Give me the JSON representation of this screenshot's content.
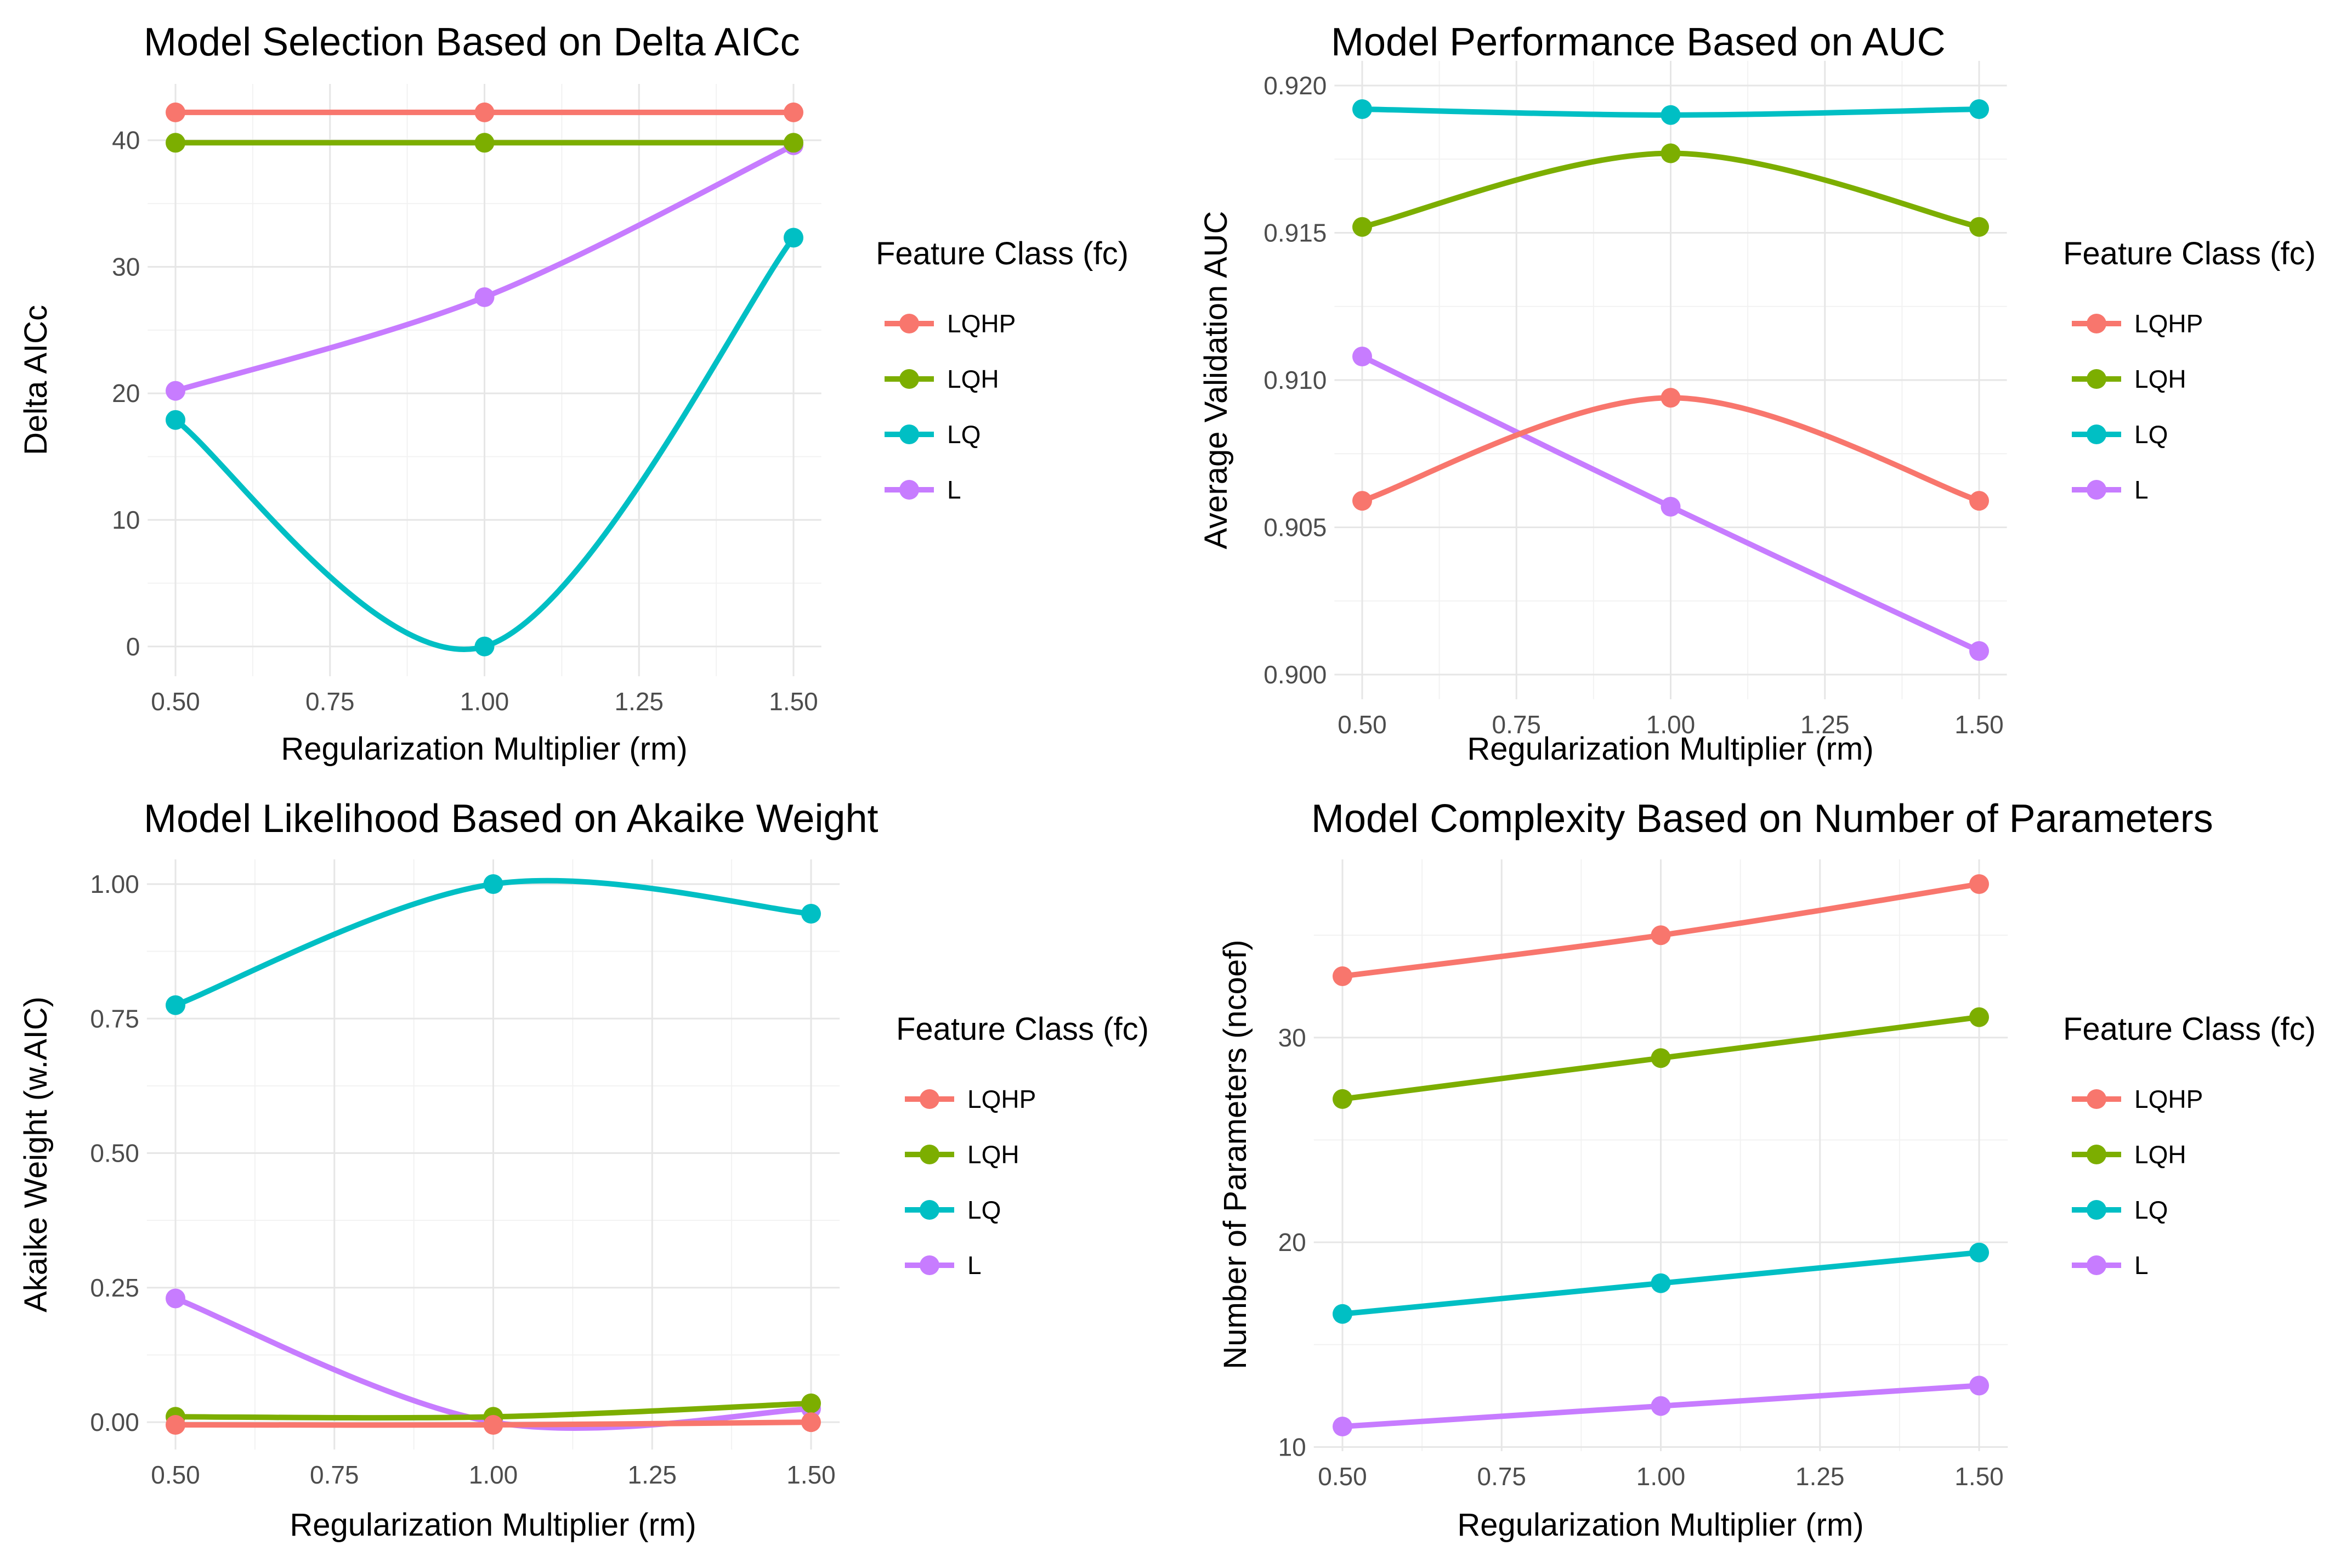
{
  "colors": {
    "LQHP": "#F8766D",
    "LQH": "#7CAE00",
    "LQ": "#00BFC4",
    "L": "#C77CFF"
  },
  "chart_data": [
    {
      "type": "line",
      "title": "Model Selection Based on Delta AICc",
      "xlabel": "Regularization Multiplier (rm)",
      "ylabel": "Delta AICc",
      "x": [
        0.5,
        1.0,
        1.5
      ],
      "xticks": [
        0.5,
        0.75,
        1.0,
        1.25,
        1.5
      ],
      "xtick_labels": [
        "0.50",
        "0.75",
        "1.00",
        "1.25",
        "1.50"
      ],
      "xlim": [
        0.5,
        1.5
      ],
      "yticks": [
        0,
        10,
        20,
        30,
        40
      ],
      "ytick_labels": [
        "0",
        "10",
        "20",
        "30",
        "40"
      ],
      "ylim": [
        -0.4,
        42.5
      ],
      "legend_title": "Feature Class (fc)",
      "series": [
        {
          "name": "LQHP",
          "values": [
            42.2,
            42.2,
            42.2
          ]
        },
        {
          "name": "LQH",
          "values": [
            39.8,
            39.8,
            39.8
          ]
        },
        {
          "name": "LQ",
          "values": [
            17.9,
            0.0,
            32.3
          ]
        },
        {
          "name": "L",
          "values": [
            20.2,
            27.6,
            39.6
          ]
        }
      ]
    },
    {
      "type": "line",
      "title": "Model Performance Based on AUC",
      "xlabel": "Regularization Multiplier (rm)",
      "ylabel": "Average Validation AUC",
      "x": [
        0.5,
        1.0,
        1.5
      ],
      "xticks": [
        0.5,
        0.75,
        1.0,
        1.25,
        1.5
      ],
      "xtick_labels": [
        "0.50",
        "0.75",
        "1.00",
        "1.25",
        "1.50"
      ],
      "xlim": [
        0.5,
        1.5
      ],
      "yticks": [
        0.9,
        0.905,
        0.91,
        0.915,
        0.92
      ],
      "ytick_labels": [
        "0.900",
        "0.905",
        "0.910",
        "0.915",
        "0.920"
      ],
      "ylim": [
        0.9,
        0.92
      ],
      "legend_title": "Feature Class (fc)",
      "series": [
        {
          "name": "LQHP",
          "values": [
            0.9059,
            0.9094,
            0.9059
          ]
        },
        {
          "name": "LQH",
          "values": [
            0.9152,
            0.9177,
            0.9152
          ]
        },
        {
          "name": "LQ",
          "values": [
            0.9192,
            0.919,
            0.9192
          ]
        },
        {
          "name": "L",
          "values": [
            0.9108,
            0.9057,
            0.9008
          ]
        }
      ]
    },
    {
      "type": "line",
      "title": "Model Likelihood Based on Akaike Weight",
      "xlabel": "Regularization Multiplier (rm)",
      "ylabel": "Akaike Weight (w.AIC)",
      "x": [
        0.5,
        1.0,
        1.5
      ],
      "xticks": [
        0.5,
        0.75,
        1.0,
        1.25,
        1.5
      ],
      "xtick_labels": [
        "0.50",
        "0.75",
        "1.00",
        "1.25",
        "1.50"
      ],
      "xlim": [
        0.5,
        1.5
      ],
      "yticks": [
        0,
        0.25,
        0.5,
        0.75,
        1.0
      ],
      "ytick_labels": [
        "0.00",
        "0.25",
        "0.50",
        "0.75",
        "1.00"
      ],
      "ylim": [
        -0.005,
        1.0
      ],
      "legend_title": "Feature Class (fc)",
      "series": [
        {
          "name": "LQHP",
          "values": [
            -0.005,
            -0.005,
            0.0
          ]
        },
        {
          "name": "LQH",
          "values": [
            0.01,
            0.01,
            0.035
          ]
        },
        {
          "name": "LQ",
          "values": [
            0.775,
            1.0,
            0.945
          ]
        },
        {
          "name": "L",
          "values": [
            0.23,
            0.0,
            0.025
          ]
        }
      ]
    },
    {
      "type": "line",
      "title": "Model Complexity Based on Number of Parameters",
      "xlabel": "Regularization Multiplier (rm)",
      "ylabel": "Number of Parameters (ncoef)",
      "x": [
        0.5,
        1.0,
        1.5
      ],
      "xticks": [
        0.5,
        0.75,
        1.0,
        1.25,
        1.5
      ],
      "xtick_labels": [
        "0.50",
        "0.75",
        "1.00",
        "1.25",
        "1.50"
      ],
      "xlim": [
        0.5,
        1.5
      ],
      "yticks": [
        10,
        20,
        30
      ],
      "ytick_labels": [
        "10",
        "20",
        "30"
      ],
      "ylim": [
        11,
        37.5
      ],
      "legend_title": "Feature Class (fc)",
      "series": [
        {
          "name": "LQHP",
          "values": [
            33,
            35,
            37.5
          ]
        },
        {
          "name": "LQH",
          "values": [
            27,
            29,
            31
          ]
        },
        {
          "name": "LQ",
          "values": [
            16.5,
            18,
            19.5
          ]
        },
        {
          "name": "L",
          "values": [
            11,
            12,
            13
          ]
        }
      ]
    }
  ]
}
